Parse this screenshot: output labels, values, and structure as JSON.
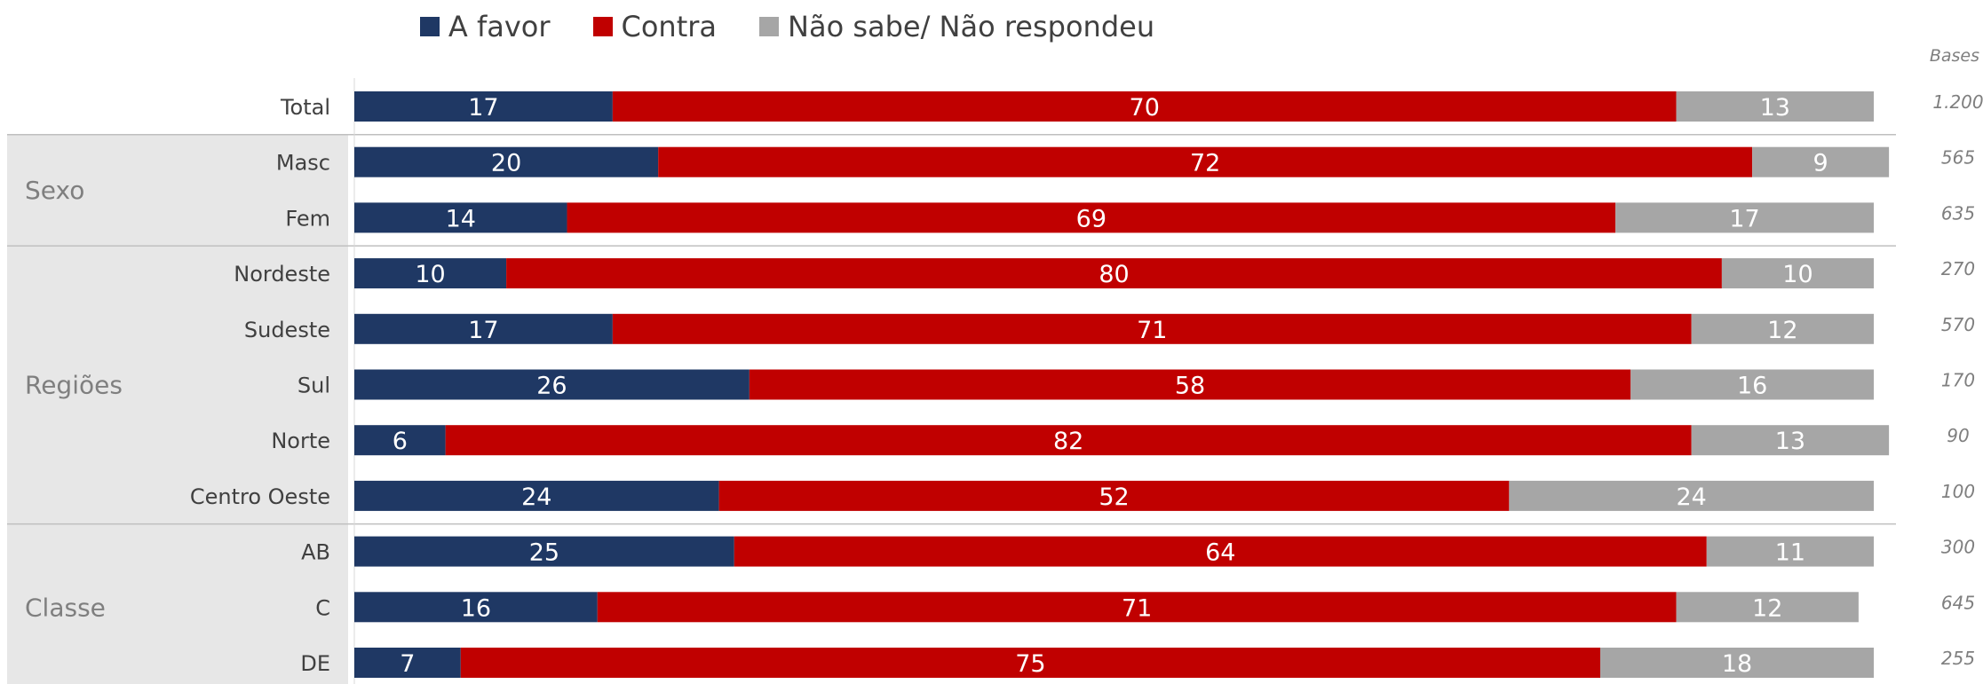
{
  "legend": {
    "a_favor": "A favor",
    "contra": "Contra",
    "nao_sabe": "Não sabe/ Não respondeu"
  },
  "bases_label": "Bases",
  "colors": {
    "a_favor": "#1f3864",
    "contra": "#c00000",
    "nao_sabe": "#a6a6a6",
    "group_bg": "#e7e7e7"
  },
  "chart_data": {
    "type": "bar",
    "orientation": "horizontal",
    "stacked": true,
    "categories": [
      "Total",
      "Masc",
      "Fem",
      "Nordeste",
      "Sudeste",
      "Sul",
      "Norte",
      "Centro Oeste",
      "AB",
      "C",
      "DE"
    ],
    "groups": [
      {
        "label": "",
        "rows": [
          "Total"
        ]
      },
      {
        "label": "Sexo",
        "rows": [
          "Masc",
          "Fem"
        ]
      },
      {
        "label": "Regiões",
        "rows": [
          "Nordeste",
          "Sudeste",
          "Sul",
          "Norte",
          "Centro Oeste"
        ]
      },
      {
        "label": "Classe",
        "rows": [
          "AB",
          "C",
          "DE"
        ]
      }
    ],
    "series": [
      {
        "name": "A favor",
        "values": [
          17,
          20,
          14,
          10,
          17,
          26,
          6,
          24,
          25,
          16,
          7
        ]
      },
      {
        "name": "Contra",
        "values": [
          70,
          72,
          69,
          80,
          71,
          58,
          82,
          52,
          64,
          71,
          75
        ]
      },
      {
        "name": "Não sabe/ Não respondeu",
        "values": [
          13,
          9,
          17,
          10,
          12,
          16,
          13,
          24,
          11,
          12,
          18
        ]
      }
    ],
    "bases": [
      "1.200",
      "565",
      "635",
      "270",
      "570",
      "170",
      "90",
      "100",
      "300",
      "645",
      "255"
    ],
    "xlim": [
      0,
      100
    ],
    "legend_position": "top"
  }
}
